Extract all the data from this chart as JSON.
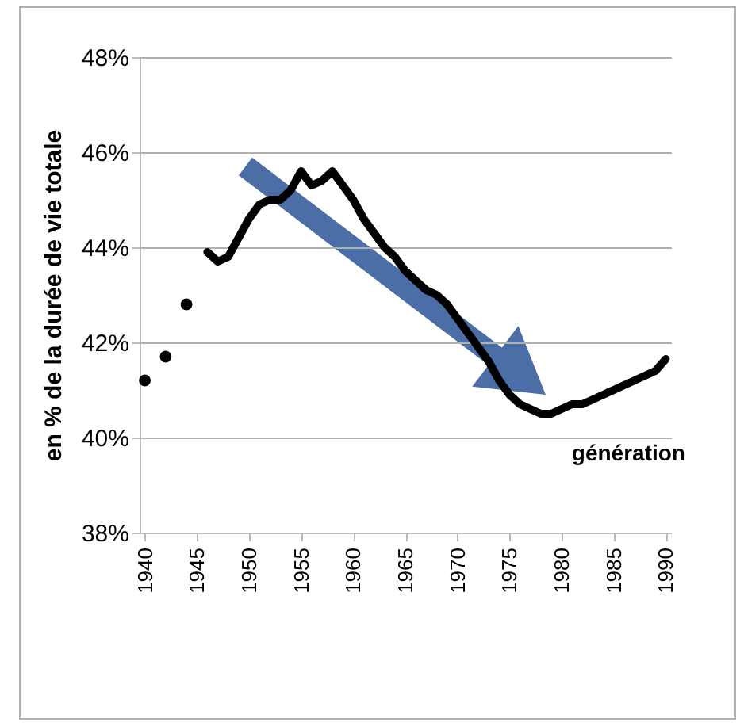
{
  "chart_data": {
    "type": "line",
    "ylabel": "en % de la durée de vie totale",
    "annotations": [
      "génération"
    ],
    "series": [
      {
        "type": "scatter",
        "marker": "circle",
        "color": "#000000",
        "x": [
          1940,
          1942,
          1944
        ],
        "values": [
          41.2,
          41.7,
          42.8
        ]
      },
      {
        "marker": "none",
        "color": "#000000",
        "x": [
          1946,
          1947,
          1948,
          1949,
          1950,
          1951,
          1952,
          1953,
          1954,
          1955,
          1956,
          1957,
          1958,
          1959,
          1960,
          1961,
          1962,
          1963,
          1964,
          1965,
          1966,
          1967,
          1968,
          1969,
          1970,
          1971,
          1972,
          1973,
          1974,
          1975,
          1976,
          1977,
          1978,
          1979,
          1980,
          1981,
          1982,
          1983,
          1984,
          1985,
          1986,
          1987,
          1988,
          1989,
          1990
        ],
        "values": [
          43.9,
          43.7,
          43.8,
          44.2,
          44.6,
          44.9,
          45.0,
          45.0,
          45.2,
          45.6,
          45.3,
          45.4,
          45.6,
          45.3,
          45.0,
          44.6,
          44.3,
          44.0,
          43.8,
          43.5,
          43.3,
          43.1,
          43.0,
          42.8,
          42.5,
          42.2,
          41.9,
          41.6,
          41.2,
          40.9,
          40.7,
          40.6,
          40.5,
          40.5,
          40.6,
          40.7,
          40.7,
          40.8,
          40.9,
          41.0,
          41.1,
          41.2,
          41.3,
          41.4,
          41.65
        ]
      }
    ],
    "xlim": [
      1939.5,
      1990.5
    ],
    "xticks": [
      1940,
      1945,
      1950,
      1955,
      1960,
      1965,
      1970,
      1975,
      1980,
      1985,
      1990
    ],
    "ylim": [
      38,
      48
    ],
    "yticks": [
      {
        "value": 38,
        "label": "38%"
      },
      {
        "value": 40,
        "label": "40%"
      },
      {
        "value": 42,
        "label": "42%"
      },
      {
        "value": 44,
        "label": "44%"
      },
      {
        "value": 46,
        "label": "46%"
      },
      {
        "value": 48,
        "label": "48%"
      }
    ],
    "grid": "y",
    "line_style": "solid"
  }
}
